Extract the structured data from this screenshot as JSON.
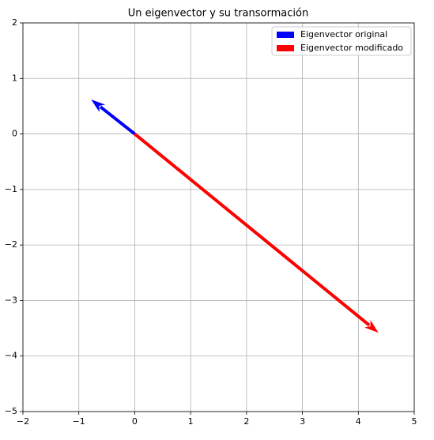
{
  "chart_data": {
    "type": "quiver",
    "title": "Un eigenvector y su transormación",
    "series": [
      {
        "name": "Eigenvector original",
        "color": "#0000ff",
        "x": [
          0,
          -0.78
        ],
        "y": [
          0,
          0.62
        ]
      },
      {
        "name": "Eigenvector modificado",
        "color": "#ff0000",
        "x": [
          0,
          4.36
        ],
        "y": [
          0,
          -3.58
        ]
      }
    ],
    "xlim": [
      -2,
      5
    ],
    "xticks": [
      {
        "value": -2,
        "label": "−2"
      },
      {
        "value": -1,
        "label": "−1"
      },
      0,
      1,
      2,
      3,
      4,
      5
    ],
    "ylim": [
      -5,
      2
    ],
    "yticks": [
      {
        "value": -5,
        "label": "−5"
      },
      {
        "value": -4,
        "label": "−4"
      },
      {
        "value": -3,
        "label": "−3"
      },
      {
        "value": -2,
        "label": "−2"
      },
      {
        "value": -1,
        "label": "−1"
      },
      0,
      1,
      2
    ],
    "grid": true,
    "legend": "upper right"
  }
}
